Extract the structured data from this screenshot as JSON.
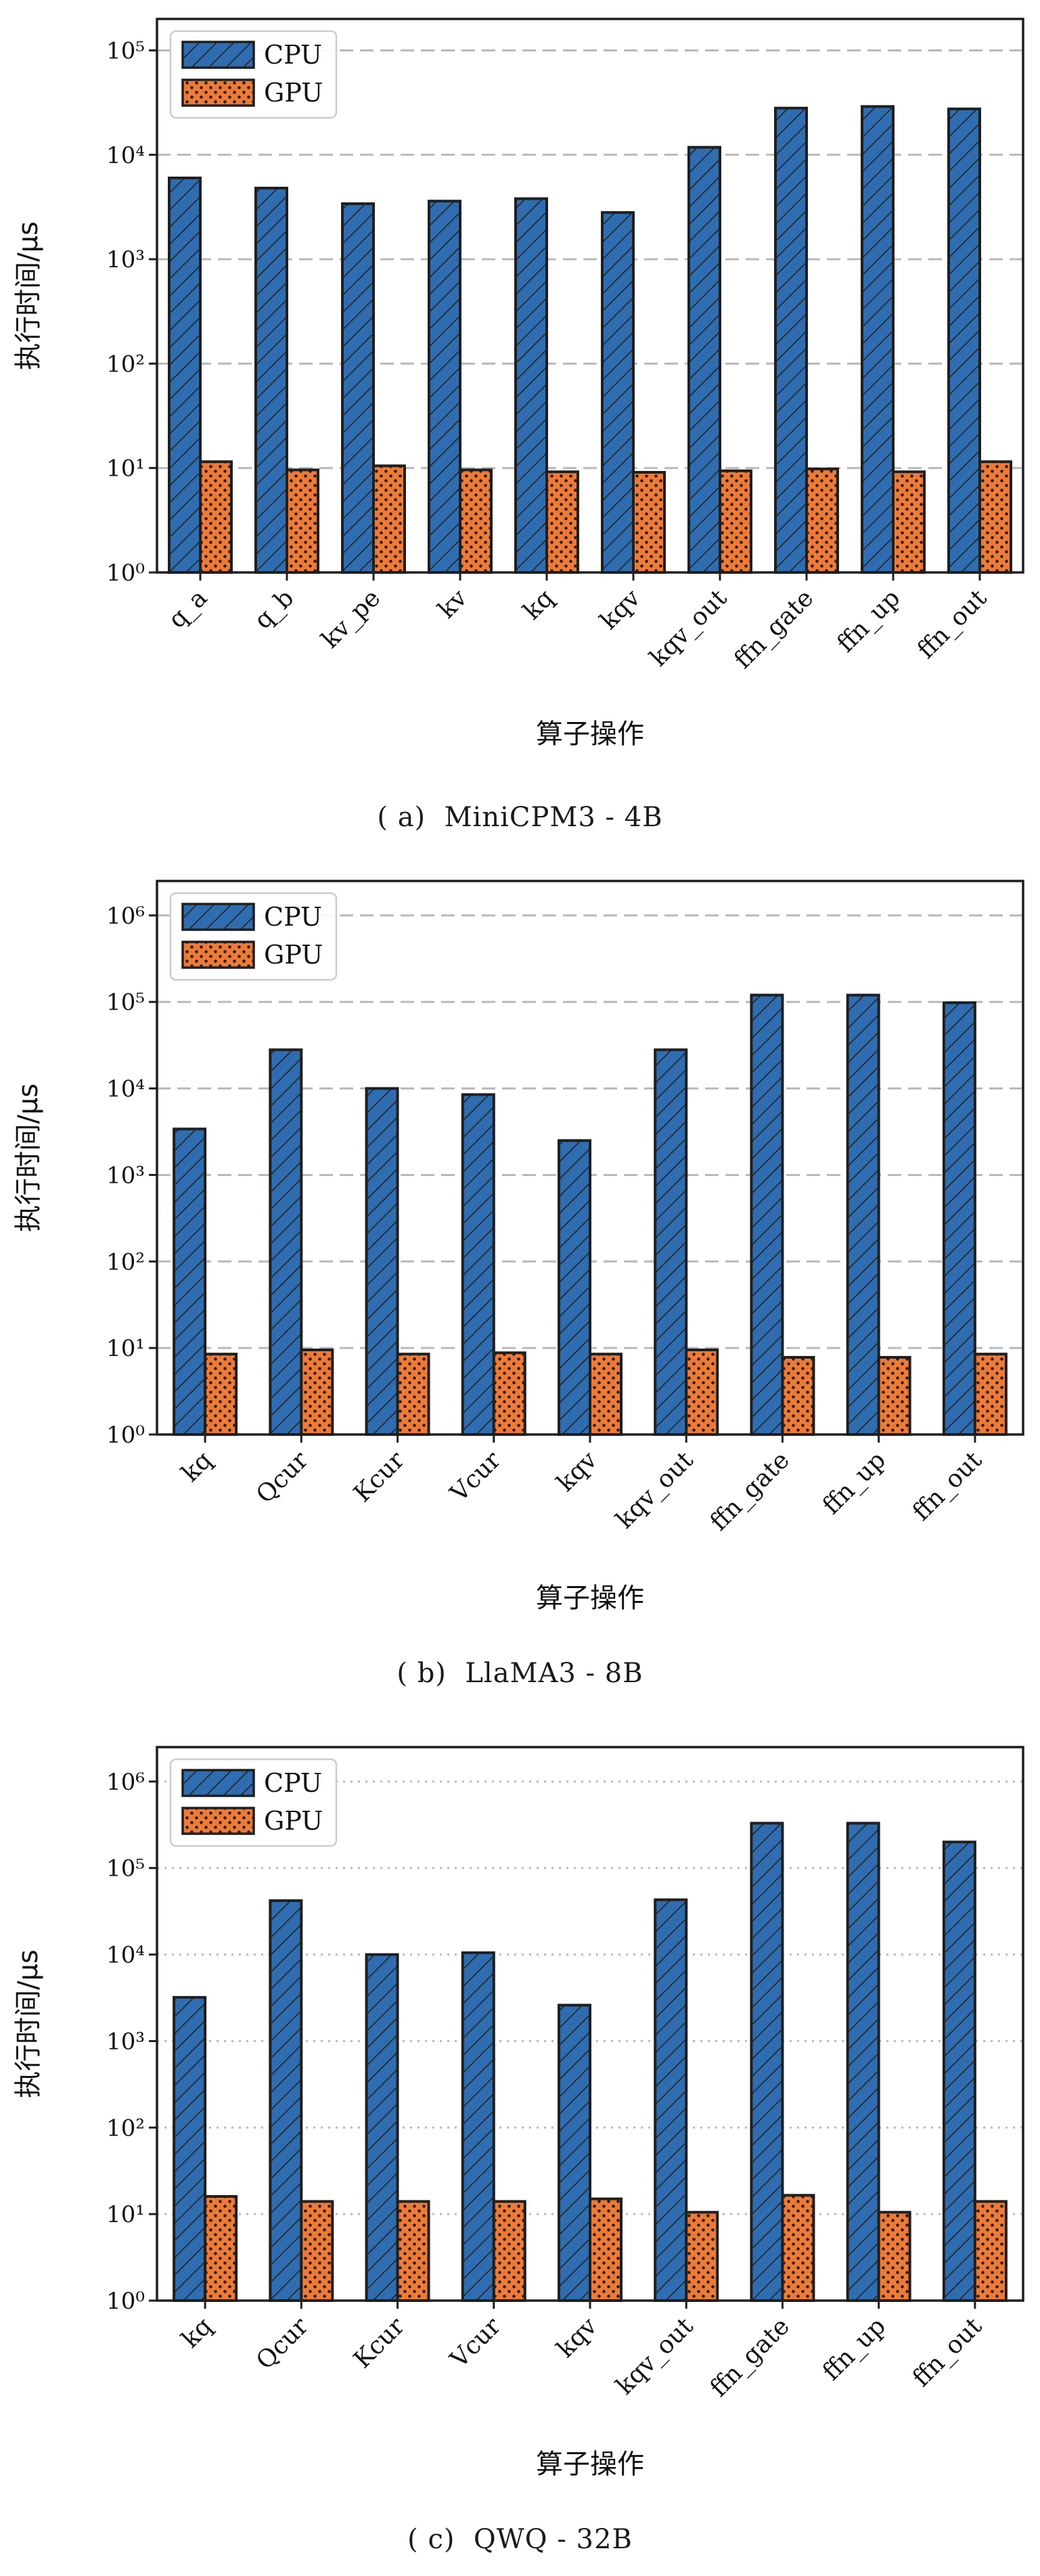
{
  "colors": {
    "cpu": "#2f6db0",
    "gpu": "#ef7a36",
    "edge": "#1f1f1f",
    "grid": "#b9b9b9"
  },
  "chart_data": [
    {
      "type": "bar",
      "caption": "( a)  MiniCPM3 - 4B",
      "xlabel": "算子操作",
      "ylabel": "执行时间/μs",
      "yscale": "log",
      "ylim": [
        1,
        200000
      ],
      "yticks": [
        1,
        10,
        100,
        1000,
        10000,
        100000
      ],
      "grid": "dashed",
      "legend_position": "top-left",
      "categories": [
        "q_a",
        "q_b",
        "kv_pe",
        "kv",
        "kq",
        "kqv",
        "kqv_out",
        "ffn_gate",
        "ffn_up",
        "ffn_out"
      ],
      "series": [
        {
          "name": "CPU",
          "values": [
            6000,
            4800,
            3400,
            3600,
            3800,
            2800,
            11800,
            28000,
            29000,
            27500
          ]
        },
        {
          "name": "GPU",
          "values": [
            11.5,
            9.6,
            10.5,
            9.6,
            9.2,
            9.1,
            9.4,
            9.8,
            9.2,
            11.5
          ]
        }
      ]
    },
    {
      "type": "bar",
      "caption": "( b)  LlaMA3 - 8B",
      "xlabel": "算子操作",
      "ylabel": "执行时间/μs",
      "yscale": "log",
      "ylim": [
        1,
        2500000
      ],
      "yticks": [
        1,
        10,
        100,
        1000,
        10000,
        100000,
        1000000
      ],
      "grid": "dashed",
      "legend_position": "top-left",
      "categories": [
        "kq",
        "Qcur",
        "Kcur",
        "Vcur",
        "kqv",
        "kqv_out",
        "ffn_gate",
        "ffn_up",
        "ffn_out"
      ],
      "series": [
        {
          "name": "CPU",
          "values": [
            3400,
            28000,
            10000,
            8500,
            2500,
            28000,
            120000,
            120000,
            98000
          ]
        },
        {
          "name": "GPU",
          "values": [
            8.5,
            9.5,
            8.5,
            8.8,
            8.5,
            9.5,
            7.8,
            7.8,
            8.5
          ]
        }
      ]
    },
    {
      "type": "bar",
      "caption": "( c)  QWQ - 32B",
      "xlabel": "算子操作",
      "ylabel": "执行时间/μs",
      "yscale": "log",
      "ylim": [
        1,
        2500000
      ],
      "yticks": [
        1,
        10,
        100,
        1000,
        10000,
        100000,
        1000000
      ],
      "grid": "dotted",
      "legend_position": "top-left",
      "categories": [
        "kq",
        "Qcur",
        "Kcur",
        "Vcur",
        "kqv",
        "kqv_out",
        "ffn_gate",
        "ffn_up",
        "ffn_out"
      ],
      "series": [
        {
          "name": "CPU",
          "values": [
            3200,
            42000,
            10000,
            10500,
            2600,
            43000,
            330000,
            330000,
            200000
          ]
        },
        {
          "name": "GPU",
          "values": [
            16,
            14,
            14,
            14,
            15,
            10.5,
            16.5,
            10.5,
            14
          ]
        }
      ]
    }
  ]
}
